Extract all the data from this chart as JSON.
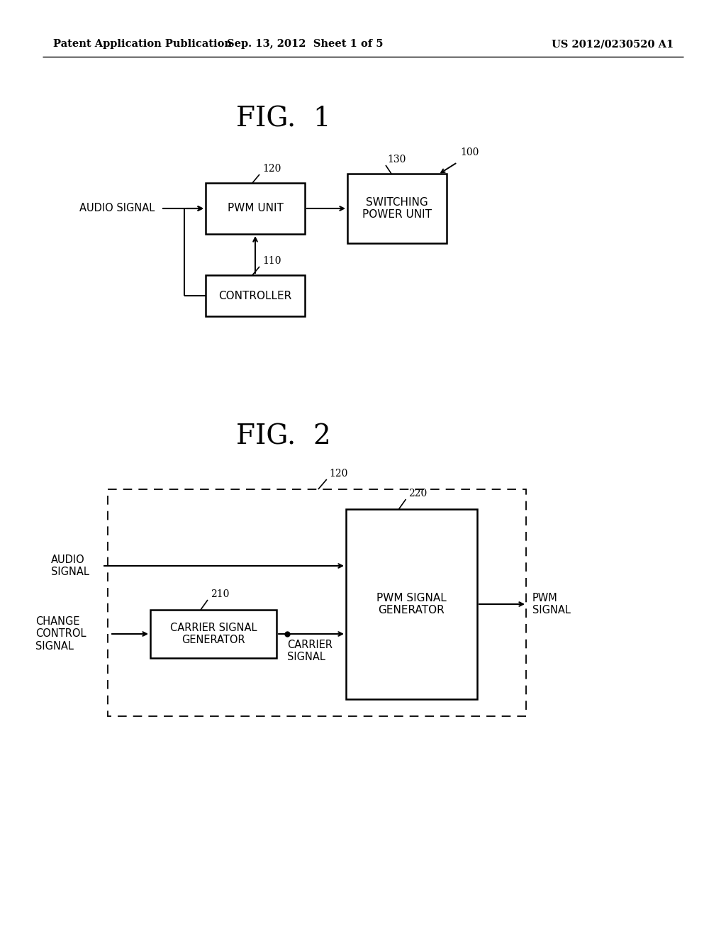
{
  "bg_color": "#ffffff",
  "header_left": "Patent Application Publication",
  "header_center": "Sep. 13, 2012  Sheet 1 of 5",
  "header_right": "US 2012/0230520 A1",
  "fig1_title": "FIG.  1",
  "fig2_title": "FIG.  2",
  "fig1_label_100": "100",
  "fig1_label_120": "120",
  "fig1_label_130": "130",
  "fig1_label_110": "110",
  "fig1_box_pwm": "PWM UNIT",
  "fig1_box_switching": "SWITCHING\nPOWER UNIT",
  "fig1_box_controller": "CONTROLLER",
  "fig1_text_audio": "AUDIO SIGNAL",
  "fig2_label_120": "120",
  "fig2_label_220": "220",
  "fig2_label_210": "210",
  "fig2_box_pwm_signal_gen": "PWM SIGNAL\nGENERATOR",
  "fig2_box_carrier_gen": "CARRIER SIGNAL\nGENERATOR",
  "fig2_text_audio": "AUDIO\nSIGNAL",
  "fig2_text_change": "CHANGE\nCONTROL\nSIGNAL",
  "fig2_text_carrier_signal": "CARRIER\nSIGNAL",
  "fig2_text_pwm_signal": "PWM\nSIGNAL"
}
